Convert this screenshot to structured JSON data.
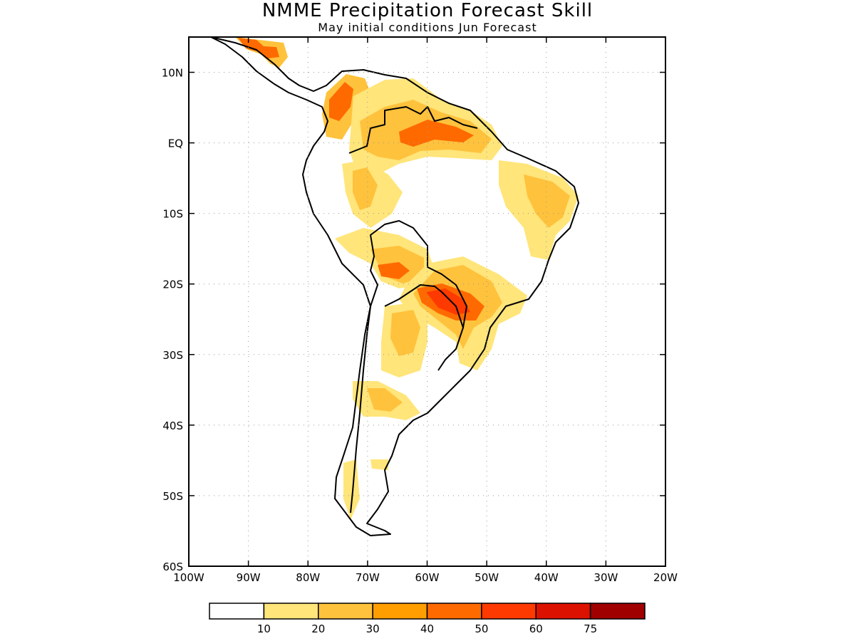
{
  "title": "NMME Precipitation Forecast Skill",
  "subtitle": "May initial conditions  Jun Forecast",
  "map": {
    "lon_range": [
      -100,
      -20
    ],
    "lat_range": [
      -60,
      15
    ],
    "lon_ticks": [
      "100W",
      "90W",
      "80W",
      "70W",
      "60W",
      "50W",
      "40W",
      "30W",
      "20W"
    ],
    "lat_ticks": [
      "10N",
      "EQ",
      "10S",
      "20S",
      "30S",
      "40S",
      "50S",
      "60S"
    ],
    "lat_tick_values": [
      10,
      0,
      -10,
      -20,
      -30,
      -40,
      -50,
      -60
    ]
  },
  "colorbar": {
    "labels": [
      "10",
      "20",
      "30",
      "40",
      "50",
      "60",
      "75"
    ],
    "colors": [
      "#ffffff",
      "#ffe57a",
      "#ffc23c",
      "#ff9e00",
      "#ff6a00",
      "#ff3a00",
      "#dd1100",
      "#a00000"
    ]
  }
}
